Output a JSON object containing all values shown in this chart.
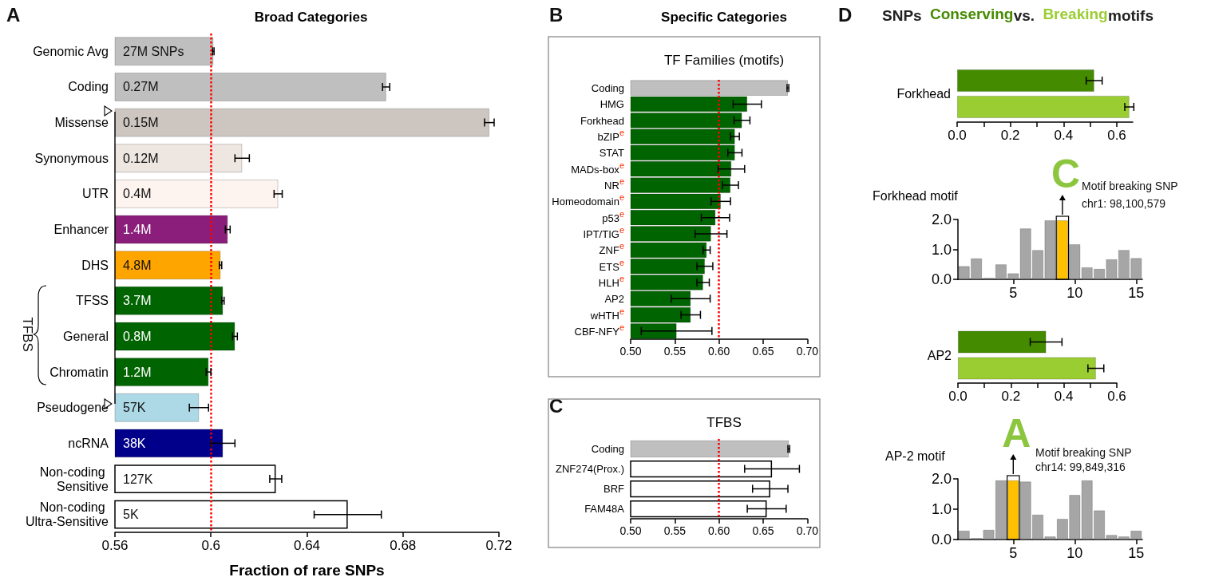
{
  "chart_data": [
    {
      "type": "bar",
      "orientation": "horizontal",
      "title": "Broad Categories",
      "xlabel": "Fraction of rare SNPs",
      "categories": [
        "Genomic Avg",
        "Coding",
        "Missense",
        "Synonymous",
        "UTR",
        "Enhancer",
        "DHS",
        "TFSS",
        "General",
        "Chromatin",
        "Pseudogene",
        "ncRNA",
        "Non-coding Sensitive",
        "Non-coding Ultra-Sensitive"
      ],
      "values": [
        0.601,
        0.673,
        0.716,
        0.613,
        0.628,
        0.607,
        0.604,
        0.605,
        0.61,
        0.599,
        0.595,
        0.605,
        0.627,
        0.657
      ],
      "errors": [
        0.0003,
        0.0015,
        0.002,
        0.003,
        0.0017,
        0.001,
        0.0005,
        0.0005,
        0.001,
        0.001,
        0.004,
        0.005,
        0.0025,
        0.014
      ],
      "colors": [
        "#bfbfbf",
        "#bfbfbf",
        "#cdc6c0",
        "#ede6e1",
        "#fdf4f0",
        "#8b1e7a",
        "#ffa500",
        "#006400",
        "#006400",
        "#006400",
        "#add8e6",
        "#00008b",
        "#ffffff",
        "#ffffff"
      ],
      "xlim": [
        0.56,
        0.72
      ],
      "xticks": [
        0.56,
        0.6,
        0.64,
        0.68,
        0.72
      ],
      "ref_lines": [
        {
          "axis": "x",
          "value": 0.6,
          "color": "#ff0000",
          "line_style": "dotted"
        }
      ],
      "annotations": [
        "A",
        "TFBS",
        {
          "text": "27M SNPs",
          "y": "Genomic Avg"
        },
        {
          "text": "0.27M",
          "y": "Coding"
        },
        {
          "text": "0.15M",
          "y": "Missense"
        },
        {
          "text": "0.12M",
          "y": "Synonymous"
        },
        {
          "text": "0.4M",
          "y": "UTR"
        },
        {
          "text": "1.4M",
          "y": "Enhancer"
        },
        {
          "text": "4.8M",
          "y": "DHS"
        },
        {
          "text": "3.7M",
          "y": "TFSS"
        },
        {
          "text": "0.8M",
          "y": "General"
        },
        {
          "text": "1.2M",
          "y": "Chromatin"
        },
        {
          "text": "57K",
          "y": "Pseudogene"
        },
        {
          "text": "38K",
          "y": "ncRNA"
        },
        {
          "text": "127K",
          "y": "Non-coding Sensitive"
        },
        {
          "text": "5K",
          "y": "Non-coding Ultra-Sensitive"
        }
      ]
    },
    {
      "type": "bar",
      "orientation": "horizontal",
      "title": "Specific Categories",
      "subtitle": "TF Families (motifs)",
      "categories": [
        "Coding",
        "HMG",
        "Forkhead",
        "bZIP$^{e}$",
        "STAT",
        "MADs-box$^{e}$",
        "NR$^{e}$",
        "Homeodomain$^{e}$",
        "p53$^{e}$",
        "IPT/TIG$^{e}$",
        "ZNF$^{e}$",
        "ETS$^{e}$",
        "HLH$^{e}$",
        "AP2",
        "wHTH$^{e}$",
        "CBF-NFY$^{e}$"
      ],
      "values": [
        0.678,
        0.632,
        0.626,
        0.618,
        0.618,
        0.614,
        0.613,
        0.602,
        0.596,
        0.591,
        0.586,
        0.584,
        0.582,
        0.568,
        0.568,
        0.552
      ],
      "errors": [
        0.001,
        0.016,
        0.009,
        0.005,
        0.008,
        0.015,
        0.009,
        0.011,
        0.016,
        0.018,
        0.004,
        0.009,
        0.007,
        0.022,
        0.011,
        0.04
      ],
      "colors": [
        "#bfbfbf",
        "#006400",
        "#006400",
        "#006400",
        "#006400",
        "#006400",
        "#006400",
        "#006400",
        "#006400",
        "#006400",
        "#006400",
        "#006400",
        "#006400",
        "#006400",
        "#006400",
        "#006400"
      ],
      "xlim": [
        0.5,
        0.7
      ],
      "xticks": [
        {
          "value": 0.5,
          "label": "0.50"
        },
        {
          "value": 0.55,
          "label": "0.55"
        },
        {
          "value": 0.6,
          "label": "0.60"
        },
        {
          "value": 0.65,
          "label": "0.65"
        },
        {
          "value": 0.7,
          "label": "0.70"
        }
      ],
      "ref_lines": [
        {
          "axis": "x",
          "value": 0.6,
          "color": "#ff0000",
          "line_style": "dotted"
        }
      ],
      "annotations": [
        "B"
      ]
    },
    {
      "type": "bar",
      "orientation": "horizontal",
      "title": "TFBS",
      "categories": [
        "Coding",
        "ZNF274(Prox.)",
        "BRF",
        "FAM48A"
      ],
      "values": [
        0.679,
        0.66,
        0.658,
        0.654
      ],
      "errors": [
        0.001,
        0.031,
        0.02,
        0.022
      ],
      "colors": [
        "#bfbfbf",
        "#ffffff",
        "#ffffff",
        "#ffffff"
      ],
      "xlim": [
        0.5,
        0.7
      ],
      "xticks": [
        {
          "value": 0.5,
          "label": "0.50"
        },
        {
          "value": 0.55,
          "label": "0.55"
        },
        {
          "value": 0.6,
          "label": "0.60"
        },
        {
          "value": 0.65,
          "label": "0.65"
        },
        {
          "value": 0.7,
          "label": "0.70"
        }
      ],
      "ref_lines": [
        {
          "axis": "x",
          "value": 0.6,
          "color": "#ff0000",
          "line_style": "dotted"
        }
      ],
      "annotations": [
        "C"
      ]
    },
    {
      "type": "bar",
      "orientation": "horizontal",
      "title": "SNPs",
      "legend": "top",
      "categories": [
        "Forkhead"
      ],
      "series": [
        {
          "name": "Conserving",
          "color": "#458b00",
          "values": [
            0.515
          ],
          "errors": [
            0.03
          ]
        },
        {
          "name": "Breaking",
          "color": "#9acd32",
          "values": [
            0.647
          ],
          "errors": [
            0.017
          ]
        }
      ],
      "xlim": [
        0,
        0.66
      ],
      "xticks": [
        {
          "value": 0,
          "label": "0.0"
        },
        {
          "value": 0.1,
          "label": null
        },
        {
          "value": 0.2,
          "label": "0.2"
        },
        {
          "value": 0.3,
          "label": null
        },
        {
          "value": 0.4,
          "label": "0.4"
        },
        {
          "value": 0.5,
          "label": null
        },
        {
          "value": 0.6,
          "label": "0.6"
        }
      ],
      "annotations": [
        "D",
        "vs.",
        "motifs"
      ]
    },
    {
      "type": "bar",
      "title": "Forkhead motif",
      "x": [
        1,
        2,
        3,
        4,
        5,
        6,
        7,
        8,
        9,
        10,
        11,
        12,
        13,
        14,
        15
      ],
      "values": [
        0.44,
        0.7,
        0.05,
        0.5,
        0.2,
        1.7,
        0.98,
        1.97,
        1.97,
        1.17,
        0.4,
        0.35,
        0.67,
        0.98,
        0.71
      ],
      "colors": [
        "#a6a6a6",
        "#a6a6a6",
        "#a6a6a6",
        "#a6a6a6",
        "#a6a6a6",
        "#a6a6a6",
        "#a6a6a6",
        "#a6a6a6",
        "#ffc000",
        "#a6a6a6",
        "#a6a6a6",
        "#a6a6a6",
        "#a6a6a6",
        "#a6a6a6",
        "#a6a6a6"
      ],
      "xlim": [
        0.5,
        15.5
      ],
      "xticks": [
        5,
        10,
        15
      ],
      "ylim": [
        0,
        2
      ],
      "yticks": [
        {
          "value": 0,
          "label": "0.0"
        },
        {
          "value": 1,
          "label": "1.0"
        },
        {
          "value": 2,
          "label": "2.0"
        }
      ],
      "annotations": [
        {
          "text": "C",
          "x": 9,
          "y": 2
        },
        "Motif breaking SNP",
        "chr1: 98,100,579"
      ]
    },
    {
      "type": "bar",
      "orientation": "horizontal",
      "categories": [
        "AP2"
      ],
      "series": [
        {
          "color": "#458b00",
          "values": [
            0.333
          ],
          "errors": [
            0.06
          ]
        },
        {
          "color": "#9acd32",
          "values": [
            0.521
          ],
          "errors": [
            0.03
          ]
        }
      ],
      "xlim": [
        0,
        0.6
      ],
      "xticks": [
        {
          "value": 0,
          "label": "0.0"
        },
        {
          "value": 0.1,
          "label": null
        },
        {
          "value": 0.2,
          "label": "0.2"
        },
        {
          "value": 0.3,
          "label": null
        },
        {
          "value": 0.4,
          "label": "0.4"
        },
        {
          "value": 0.5,
          "label": null
        },
        {
          "value": 0.6,
          "label": "0.6"
        }
      ]
    },
    {
      "type": "bar",
      "title": "AP-2 motif",
      "x": [
        1,
        2,
        3,
        4,
        5,
        6,
        7,
        8,
        9,
        10,
        11,
        12,
        13,
        14,
        15
      ],
      "values": [
        0.29,
        0.05,
        0.32,
        1.95,
        1.95,
        1.91,
        0.82,
        0.1,
        0.68,
        1.47,
        1.95,
        0.96,
        0.15,
        0.1,
        0.29
      ],
      "colors": [
        "#a6a6a6",
        "#a6a6a6",
        "#a6a6a6",
        "#a6a6a6",
        "#ffc000",
        "#a6a6a6",
        "#a6a6a6",
        "#a6a6a6",
        "#a6a6a6",
        "#a6a6a6",
        "#a6a6a6",
        "#a6a6a6",
        "#a6a6a6",
        "#a6a6a6",
        "#a6a6a6"
      ],
      "xlim": [
        0.5,
        15.5
      ],
      "xticks": [
        5,
        10,
        15
      ],
      "ylim": [
        0,
        2
      ],
      "yticks": [
        {
          "value": 0,
          "label": "0.0"
        },
        {
          "value": 1,
          "label": "1.0"
        },
        {
          "value": 2,
          "label": "2.0"
        }
      ],
      "annotations": [
        {
          "text": "A",
          "x": 5,
          "y": 2
        },
        "Motif breaking SNP",
        "chr14: 99,849,316"
      ]
    }
  ]
}
